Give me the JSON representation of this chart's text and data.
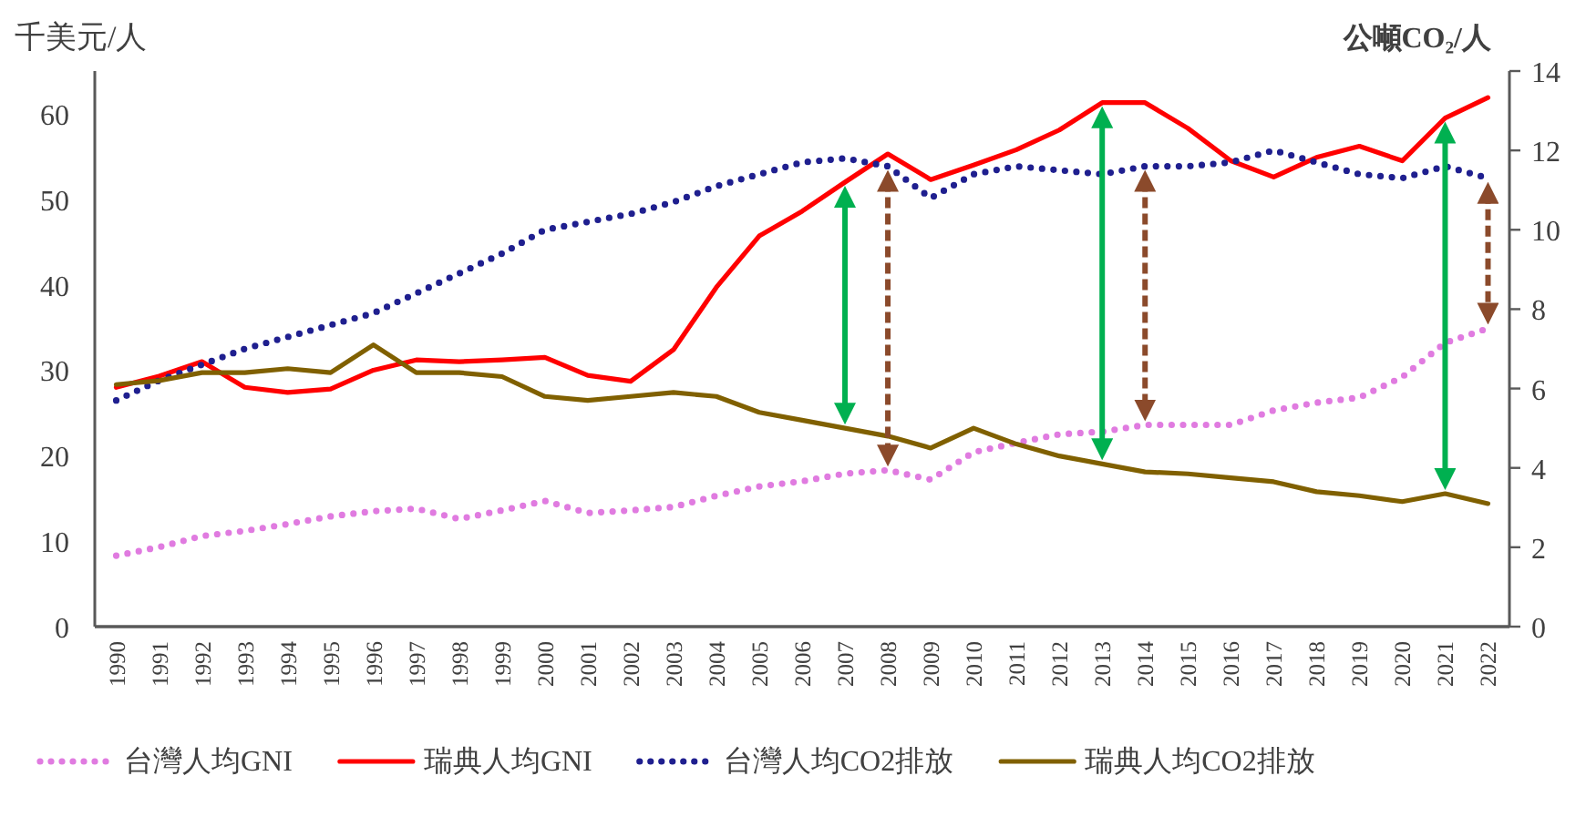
{
  "chart_data": {
    "type": "line",
    "ylabel": "千美元/人",
    "y2label": "公噸CO₂/人",
    "categories": [
      "1990",
      "1991",
      "1992",
      "1993",
      "1994",
      "1995",
      "1996",
      "1997",
      "1998",
      "1999",
      "2000",
      "2001",
      "2002",
      "2003",
      "2004",
      "2005",
      "2006",
      "2007",
      "2008",
      "2009",
      "2010",
      "2011",
      "2012",
      "2013",
      "2014",
      "2015",
      "2016",
      "2017",
      "2018",
      "2019",
      "2020",
      "2021",
      "2022"
    ],
    "series": [
      {
        "name": "台灣人均GNI",
        "color": "#e07be0",
        "line_style": "dotted",
        "values": [
          8.3,
          9.3,
          10.6,
          11.2,
          12.0,
          12.9,
          13.5,
          13.8,
          12.6,
          13.6,
          14.7,
          13.3,
          13.6,
          14.0,
          15.3,
          16.4,
          17.0,
          17.9,
          18.3,
          17.2,
          20.4,
          21.5,
          22.5,
          22.8,
          23.6,
          23.6,
          23.6,
          25.3,
          26.2,
          26.8,
          29.2,
          33.2,
          34.9
        ]
      },
      {
        "name": "瑞典人均GNI",
        "color": "#ff0000",
        "line_style": "solid",
        "values": [
          28.0,
          29.3,
          31.0,
          28.0,
          27.4,
          27.8,
          30.0,
          31.2,
          31.0,
          31.2,
          31.5,
          29.4,
          28.7,
          32.4,
          39.7,
          45.7,
          48.6,
          52.0,
          55.3,
          52.3,
          54.0,
          55.8,
          58.1,
          61.3,
          61.3,
          58.3,
          54.5,
          52.6,
          54.9,
          56.2,
          54.5,
          59.5,
          61.9
        ]
      },
      {
        "name": "台灣人均CO2排放",
        "color": "#1f1f8f",
        "line_style": "dotted",
        "axis": "y2",
        "values": [
          5.7,
          6.2,
          6.6,
          7.0,
          7.3,
          7.6,
          7.9,
          8.4,
          8.9,
          9.4,
          10.0,
          10.2,
          10.4,
          10.7,
          11.1,
          11.4,
          11.7,
          11.8,
          11.6,
          10.8,
          11.4,
          11.6,
          11.5,
          11.4,
          11.6,
          11.6,
          11.7,
          12.0,
          11.7,
          11.4,
          11.3,
          11.6,
          11.3
        ]
      },
      {
        "name": "瑞典人均CO2排放",
        "color": "#806000",
        "line_style": "solid",
        "axis": "y2",
        "values": [
          6.1,
          6.2,
          6.4,
          6.4,
          6.5,
          6.4,
          7.1,
          6.4,
          6.4,
          6.3,
          5.8,
          5.7,
          5.8,
          5.9,
          5.8,
          5.4,
          5.2,
          5.0,
          4.8,
          4.5,
          5.0,
          4.6,
          4.3,
          4.1,
          3.9,
          3.85,
          3.75,
          3.65,
          3.4,
          3.3,
          3.15,
          3.35,
          3.1
        ]
      }
    ],
    "ylim": [
      0,
      65
    ],
    "yticks": [
      0,
      10,
      20,
      30,
      40,
      50,
      60
    ],
    "y2lim": [
      0,
      14
    ],
    "y2ticks": [
      0,
      2,
      4,
      6,
      8,
      10,
      12,
      14
    ],
    "ref_lines": [
      {
        "axis": "x",
        "value": "2007",
        "color": "#00b050",
        "line_style": "solid"
      },
      {
        "axis": "x",
        "value": "2013",
        "color": "#00b050",
        "line_style": "solid"
      },
      {
        "axis": "x",
        "value": "2021",
        "color": "#00b050",
        "line_style": "solid"
      },
      {
        "axis": "x",
        "value": "2008",
        "color": "#8b4a2b",
        "line_style": "dashed"
      },
      {
        "axis": "x",
        "value": "2014",
        "color": "#8b4a2b",
        "line_style": "dashed"
      },
      {
        "axis": "x",
        "value": "2022",
        "color": "#8b4a2b",
        "line_style": "dashed"
      }
    ],
    "legend": "bottom"
  }
}
